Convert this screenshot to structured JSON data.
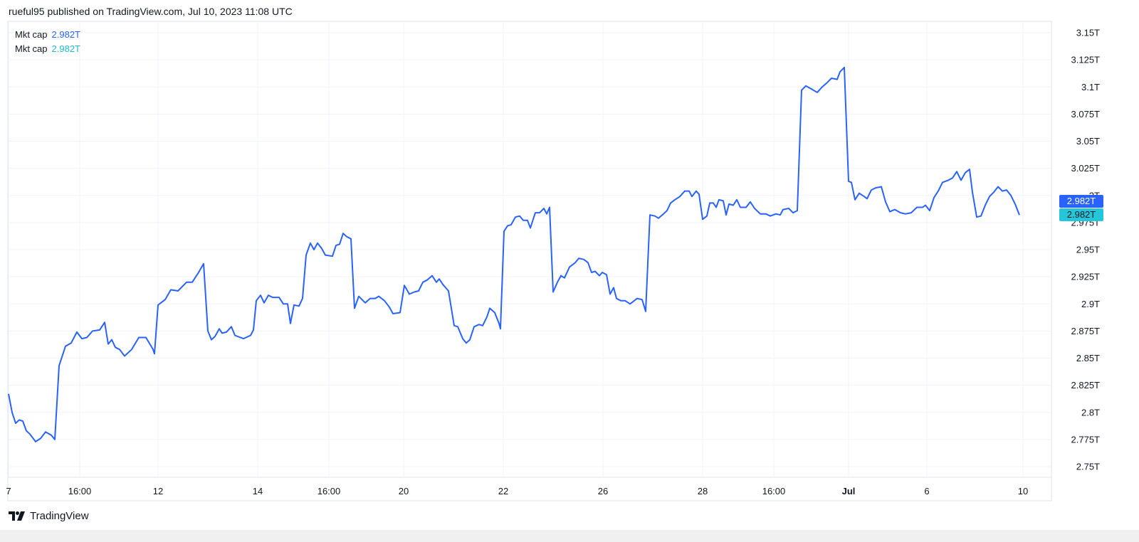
{
  "header": {
    "publisher_text": "rueful95 published on TradingView.com, Jul 10, 2023 11:08 UTC"
  },
  "legend": [
    {
      "label": "Mkt cap",
      "value": "2.982T",
      "color": "#2962ff"
    },
    {
      "label": "Mkt cap",
      "value": "2.982T",
      "color": "#22b8c8"
    }
  ],
  "price_tags": [
    {
      "value": "2.982T",
      "bg": "#2962ff",
      "fg": "#ffffff"
    },
    {
      "value": "2.982T",
      "bg": "#26c6da",
      "fg": "#131722"
    }
  ],
  "footer": {
    "brand": "TradingView",
    "logo_icon": "tradingview-logo-icon"
  },
  "chart_data": {
    "type": "line",
    "title": "",
    "xlabel": "",
    "ylabel": "",
    "x_unit": "bar index",
    "ylim": [
      2.75,
      3.15
    ],
    "y_ticks": [
      {
        "value": 3.15,
        "label": "3.15T"
      },
      {
        "value": 3.125,
        "label": "3.125T"
      },
      {
        "value": 3.1,
        "label": "3.1T"
      },
      {
        "value": 3.075,
        "label": "3.075T"
      },
      {
        "value": 3.05,
        "label": "3.05T"
      },
      {
        "value": 3.025,
        "label": "3.025T"
      },
      {
        "value": 3.0,
        "label": "3T"
      },
      {
        "value": 2.975,
        "label": "2.975T"
      },
      {
        "value": 2.95,
        "label": "2.95T"
      },
      {
        "value": 2.925,
        "label": "2.925T"
      },
      {
        "value": 2.9,
        "label": "2.9T"
      },
      {
        "value": 2.875,
        "label": "2.875T"
      },
      {
        "value": 2.85,
        "label": "2.85T"
      },
      {
        "value": 2.825,
        "label": "2.825T"
      },
      {
        "value": 2.8,
        "label": "2.8T"
      },
      {
        "value": 2.775,
        "label": "2.775T"
      },
      {
        "value": 2.75,
        "label": "2.75T"
      }
    ],
    "x_ticks": [
      {
        "x": 0,
        "label": "7"
      },
      {
        "x": 20,
        "label": "16:00"
      },
      {
        "x": 42,
        "label": "12"
      },
      {
        "x": 70,
        "label": "14"
      },
      {
        "x": 90,
        "label": "16:00"
      },
      {
        "x": 111,
        "label": "20"
      },
      {
        "x": 139,
        "label": "22"
      },
      {
        "x": 167,
        "label": "26"
      },
      {
        "x": 195,
        "label": "28"
      },
      {
        "x": 215,
        "label": "16:00"
      },
      {
        "x": 236,
        "label": "Jul",
        "bold": true
      },
      {
        "x": 258,
        "label": "6"
      },
      {
        "x": 285,
        "label": "10"
      }
    ],
    "grid": true,
    "series": [
      {
        "color": "#2962ff",
        "points": [
          [
            0,
            2.817
          ],
          [
            1,
            2.8
          ],
          [
            2,
            2.79
          ],
          [
            3,
            2.793
          ],
          [
            4,
            2.792
          ],
          [
            5,
            2.783
          ],
          [
            6,
            2.78
          ],
          [
            7.6,
            2.773
          ],
          [
            9,
            2.776
          ],
          [
            10.4,
            2.782
          ],
          [
            12,
            2.779
          ],
          [
            13,
            2.775
          ],
          [
            14.2,
            2.843
          ],
          [
            16,
            2.861
          ],
          [
            17.6,
            2.864
          ],
          [
            19.2,
            2.874
          ],
          [
            20.6,
            2.868
          ],
          [
            22,
            2.869
          ],
          [
            23.6,
            2.875
          ],
          [
            25.6,
            2.876
          ],
          [
            27,
            2.883
          ],
          [
            28,
            2.863
          ],
          [
            29,
            2.867
          ],
          [
            30,
            2.86
          ],
          [
            31.2,
            2.858
          ],
          [
            32.6,
            2.852
          ],
          [
            34.6,
            2.858
          ],
          [
            36.6,
            2.869
          ],
          [
            38.6,
            2.869
          ],
          [
            40.6,
            2.858
          ],
          [
            41,
            2.854
          ],
          [
            42,
            2.899
          ],
          [
            44,
            2.904
          ],
          [
            45.6,
            2.913
          ],
          [
            47.6,
            2.912
          ],
          [
            50,
            2.92
          ],
          [
            51.6,
            2.92
          ],
          [
            53.2,
            2.928
          ],
          [
            54.8,
            2.937
          ],
          [
            56,
            2.875
          ],
          [
            57,
            2.867
          ],
          [
            58,
            2.87
          ],
          [
            59.2,
            2.877
          ],
          [
            60,
            2.873
          ],
          [
            61.2,
            2.874
          ],
          [
            62.6,
            2.879
          ],
          [
            63.6,
            2.871
          ],
          [
            66,
            2.868
          ],
          [
            68,
            2.871
          ],
          [
            68.8,
            2.876
          ],
          [
            69.6,
            2.903
          ],
          [
            70.8,
            2.908
          ],
          [
            71.8,
            2.901
          ],
          [
            73,
            2.908
          ],
          [
            74.2,
            2.906
          ],
          [
            76,
            2.906
          ],
          [
            77.2,
            2.9
          ],
          [
            78.4,
            2.9
          ],
          [
            79.2,
            2.882
          ],
          [
            80.2,
            2.899
          ],
          [
            81.6,
            2.898
          ],
          [
            82.6,
            2.905
          ],
          [
            83.6,
            2.945
          ],
          [
            84.8,
            2.956
          ],
          [
            85.8,
            2.95
          ],
          [
            86.8,
            2.956
          ],
          [
            88,
            2.951
          ],
          [
            89,
            2.945
          ],
          [
            91,
            2.944
          ],
          [
            92,
            2.954
          ],
          [
            93,
            2.955
          ],
          [
            94,
            2.965
          ],
          [
            95,
            2.962
          ],
          [
            96.2,
            2.96
          ],
          [
            97.2,
            2.896
          ],
          [
            98.4,
            2.907
          ],
          [
            100.2,
            2.901
          ],
          [
            101.6,
            2.905
          ],
          [
            103,
            2.905
          ],
          [
            104,
            2.907
          ],
          [
            105.6,
            2.903
          ],
          [
            107,
            2.897
          ],
          [
            108,
            2.891
          ],
          [
            110,
            2.892
          ],
          [
            111.2,
            2.917
          ],
          [
            112.6,
            2.909
          ],
          [
            114,
            2.911
          ],
          [
            115.2,
            2.912
          ],
          [
            116.4,
            2.92
          ],
          [
            117.6,
            2.922
          ],
          [
            119,
            2.926
          ],
          [
            120.2,
            2.92
          ],
          [
            121,
            2.923
          ],
          [
            122,
            2.918
          ],
          [
            123.6,
            2.912
          ],
          [
            125.2,
            2.88
          ],
          [
            126.2,
            2.879
          ],
          [
            127.6,
            2.868
          ],
          [
            128.6,
            2.864
          ],
          [
            129.6,
            2.867
          ],
          [
            130.8,
            2.879
          ],
          [
            132.2,
            2.881
          ],
          [
            133.2,
            2.88
          ],
          [
            134.4,
            2.888
          ],
          [
            135.2,
            2.896
          ],
          [
            136.6,
            2.892
          ],
          [
            137.8,
            2.882
          ],
          [
            138.2,
            2.877
          ],
          [
            139.2,
            2.967
          ],
          [
            140.2,
            2.972
          ],
          [
            141.2,
            2.973
          ],
          [
            142.4,
            2.98
          ],
          [
            143.6,
            2.981
          ],
          [
            144.6,
            2.977
          ],
          [
            145.8,
            2.977
          ],
          [
            146.6,
            2.97
          ],
          [
            148,
            2.984
          ],
          [
            149.2,
            2.984
          ],
          [
            150.4,
            2.988
          ],
          [
            151.2,
            2.983
          ],
          [
            152,
            2.989
          ],
          [
            153,
            2.911
          ],
          [
            154.2,
            2.92
          ],
          [
            155.2,
            2.926
          ],
          [
            156.2,
            2.924
          ],
          [
            157.6,
            2.934
          ],
          [
            159.2,
            2.938
          ],
          [
            160.2,
            2.942
          ],
          [
            161.6,
            2.941
          ],
          [
            162.8,
            2.938
          ],
          [
            163.8,
            2.929
          ],
          [
            164.8,
            2.93
          ],
          [
            166,
            2.926
          ],
          [
            166.8,
            2.929
          ],
          [
            168,
            2.927
          ],
          [
            169,
            2.909
          ],
          [
            170,
            2.915
          ],
          [
            170.8,
            2.905
          ],
          [
            172,
            2.903
          ],
          [
            173.2,
            2.903
          ],
          [
            174.6,
            2.9
          ],
          [
            176.6,
            2.905
          ],
          [
            178,
            2.904
          ],
          [
            179,
            2.893
          ],
          [
            180.2,
            2.982
          ],
          [
            181.6,
            2.981
          ],
          [
            182.6,
            2.979
          ],
          [
            184,
            2.983
          ],
          [
            185,
            2.986
          ],
          [
            186,
            2.993
          ],
          [
            187.2,
            2.996
          ],
          [
            188.6,
            2.999
          ],
          [
            190,
            3.004
          ],
          [
            191.2,
            3.004
          ],
          [
            192,
            2.999
          ],
          [
            193.2,
            3.004
          ],
          [
            194,
            3.001
          ],
          [
            195,
            2.978
          ],
          [
            196.2,
            2.981
          ],
          [
            197,
            2.993
          ],
          [
            198,
            2.993
          ],
          [
            198.8,
            2.989
          ],
          [
            199.6,
            2.996
          ],
          [
            200.8,
            2.995
          ],
          [
            201.6,
            2.982
          ],
          [
            202.4,
            2.992
          ],
          [
            203.6,
            2.991
          ],
          [
            204.6,
            2.996
          ],
          [
            205.6,
            2.989
          ],
          [
            207.2,
            2.989
          ],
          [
            208.4,
            2.994
          ],
          [
            209.6,
            2.988
          ],
          [
            211.2,
            2.983
          ],
          [
            212.8,
            2.983
          ],
          [
            214,
            2.981
          ],
          [
            215.6,
            2.983
          ],
          [
            216.8,
            2.982
          ],
          [
            217.6,
            2.987
          ],
          [
            219.2,
            2.988
          ],
          [
            220.4,
            2.984
          ],
          [
            221.6,
            2.986
          ],
          [
            222.8,
            3.097
          ],
          [
            224,
            3.101
          ],
          [
            225.6,
            3.098
          ],
          [
            227.2,
            3.095
          ],
          [
            228.6,
            3.1
          ],
          [
            230,
            3.104
          ],
          [
            231.2,
            3.108
          ],
          [
            232.8,
            3.107
          ],
          [
            233.6,
            3.114
          ],
          [
            234.8,
            3.118
          ],
          [
            236,
            3.013
          ],
          [
            236.8,
            3.012
          ],
          [
            237.8,
            2.996
          ],
          [
            239,
            3.002
          ],
          [
            240.4,
            2.999
          ],
          [
            241.2,
            2.997
          ],
          [
            242.4,
            3.005
          ],
          [
            243.6,
            3.007
          ],
          [
            245.2,
            3.008
          ],
          [
            246.4,
            2.994
          ],
          [
            247.6,
            2.985
          ],
          [
            249,
            2.987
          ],
          [
            250.6,
            2.984
          ],
          [
            252,
            2.983
          ],
          [
            253.6,
            2.984
          ],
          [
            255.2,
            2.989
          ],
          [
            256.8,
            2.989
          ],
          [
            257.6,
            2.991
          ],
          [
            258.8,
            2.986
          ],
          [
            260,
            2.998
          ],
          [
            261.2,
            3.004
          ],
          [
            262.4,
            3.012
          ],
          [
            264,
            3.014
          ],
          [
            265.2,
            3.016
          ],
          [
            266.4,
            3.022
          ],
          [
            267.6,
            3.014
          ],
          [
            268.8,
            3.021
          ],
          [
            270,
            3.024
          ],
          [
            270.8,
            3.003
          ],
          [
            272,
            2.98
          ],
          [
            273.2,
            2.981
          ],
          [
            274.4,
            2.991
          ],
          [
            275.6,
            2.999
          ],
          [
            276.8,
            3.003
          ],
          [
            278,
            3.008
          ],
          [
            279.2,
            3.004
          ],
          [
            280.4,
            3.005
          ],
          [
            281.6,
            3.0
          ],
          [
            282.8,
            2.992
          ],
          [
            284,
            2.982
          ]
        ]
      }
    ]
  }
}
